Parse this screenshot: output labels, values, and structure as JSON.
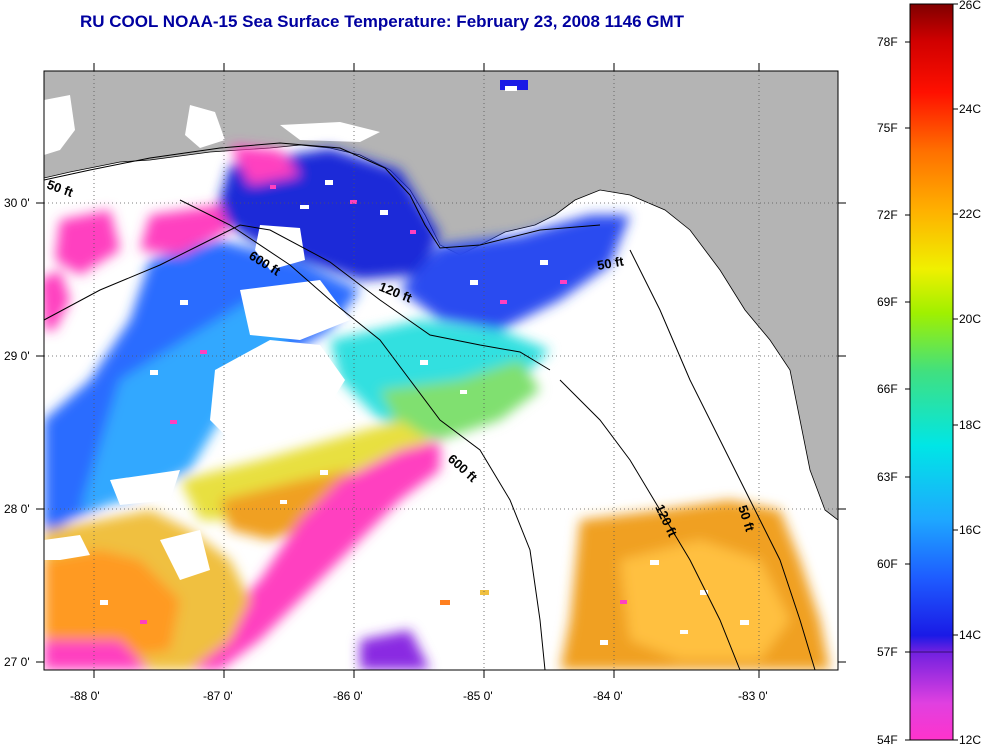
{
  "title": "RU COOL  NOAA-15  Sea Surface Temperature:  February 23, 2008 1146 GMT",
  "map": {
    "lat_labels": [
      "30 0'",
      "29 0'",
      "28 0'",
      "27 0'"
    ],
    "lon_labels": [
      "-88 0'",
      "-87 0'",
      "-86 0'",
      "-85 0'",
      "-84 0'",
      "-83 0'"
    ],
    "contour_labels": [
      "50 ft",
      "600 ft",
      "120 ft",
      "50 ft",
      "600 ft",
      "120 ft",
      "50 ft"
    ],
    "colors": {
      "land": "#b4b4b4",
      "ocean_cloud": "#ffffff",
      "title": "#0000a0"
    }
  },
  "colorbar": {
    "fahrenheit_labels": [
      "78F",
      "75F",
      "72F",
      "69F",
      "66F",
      "63F",
      "60F",
      "57F",
      "54F"
    ],
    "celsius_labels": [
      "26C",
      "24C",
      "22C",
      "20C",
      "18C",
      "16C",
      "14C",
      "12C"
    ],
    "range_c": [
      12,
      26
    ]
  }
}
